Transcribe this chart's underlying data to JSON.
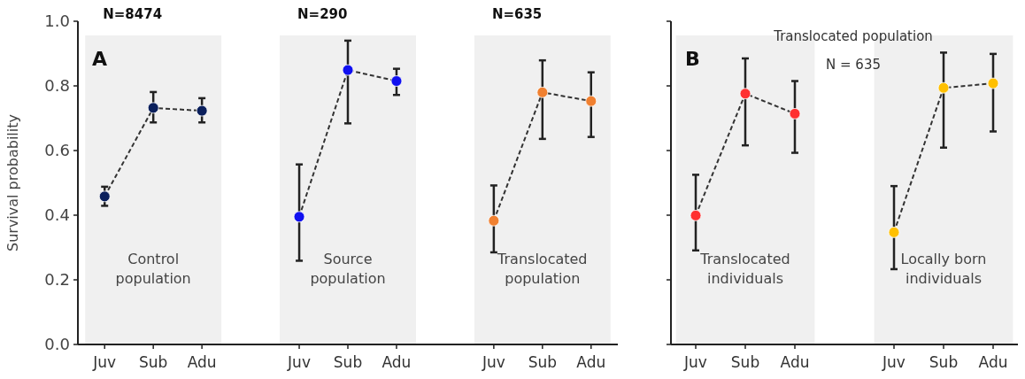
{
  "chart_data": [
    {
      "type": "line",
      "title": "A",
      "ylabel": "Survival probability",
      "categories": [
        "Juv",
        "Sub",
        "Adu",
        null,
        "Juv",
        "Sub",
        "Adu",
        null,
        "Juv",
        "Sub",
        "Adu"
      ],
      "ylim": [
        0,
        1
      ],
      "yticks": [
        {
          "value": 0,
          "label": "0.0"
        },
        0.2,
        0.4,
        0.6,
        0.8,
        {
          "value": 1,
          "label": "1.0"
        }
      ],
      "marker": "circle",
      "line_style": "dashed",
      "series": [
        {
          "color": "#0a1f5c",
          "values": [
            0.458,
            0.732,
            0.723,
            null,
            null,
            null,
            null,
            null,
            null,
            null,
            null
          ],
          "errors": [
            [
              0.429,
              0.488
            ],
            [
              0.687,
              0.781
            ],
            [
              0.687,
              0.762
            ],
            null,
            null,
            null,
            null,
            null,
            null,
            null,
            null
          ]
        },
        {
          "color": "#1010f0",
          "values": [
            null,
            null,
            null,
            null,
            0.395,
            0.849,
            0.815,
            null,
            null,
            null,
            null
          ],
          "errors": [
            null,
            null,
            null,
            null,
            [
              0.259,
              0.557
            ],
            [
              0.684,
              0.94
            ],
            [
              0.772,
              0.853
            ],
            null,
            null,
            null,
            null
          ]
        },
        {
          "color": "#f08030",
          "values": [
            null,
            null,
            null,
            null,
            null,
            null,
            null,
            null,
            0.383,
            0.78,
            0.753
          ],
          "errors": [
            null,
            null,
            null,
            null,
            null,
            null,
            null,
            null,
            [
              0.285,
              0.492
            ],
            [
              0.636,
              0.879
            ],
            [
              0.642,
              0.842
            ]
          ]
        }
      ],
      "annotations": [
        "N=8474",
        "N=290",
        "N=635",
        "Control population",
        "Source population",
        "Translocated population"
      ]
    },
    {
      "type": "line",
      "title": "B",
      "subtitle": "Translocated population",
      "categories": [
        "Juv",
        "Sub",
        "Adu",
        null,
        "Juv",
        "Sub",
        "Adu"
      ],
      "ylim": [
        0,
        1
      ],
      "yticks": [
        0,
        0.2,
        0.4,
        0.6,
        0.8,
        1
      ],
      "tick_labels": "x",
      "marker": "circle",
      "line_style": "dashed",
      "series": [
        {
          "color": "#ff3030",
          "values": [
            0.399,
            0.776,
            0.714,
            null,
            null,
            null,
            null
          ],
          "errors": [
            [
              0.291,
              0.525
            ],
            [
              0.616,
              0.885
            ],
            [
              0.593,
              0.815
            ],
            null,
            null,
            null,
            null
          ]
        },
        {
          "color": "#ffc000",
          "values": [
            null,
            null,
            null,
            null,
            0.347,
            0.794,
            0.808
          ],
          "errors": [
            null,
            null,
            null,
            null,
            [
              0.233,
              0.49
            ],
            [
              0.609,
              0.903
            ],
            [
              0.659,
              0.899
            ]
          ]
        }
      ],
      "annotations": [
        "N = 635",
        "Translocated individuals",
        "Locally born individuals"
      ]
    }
  ]
}
